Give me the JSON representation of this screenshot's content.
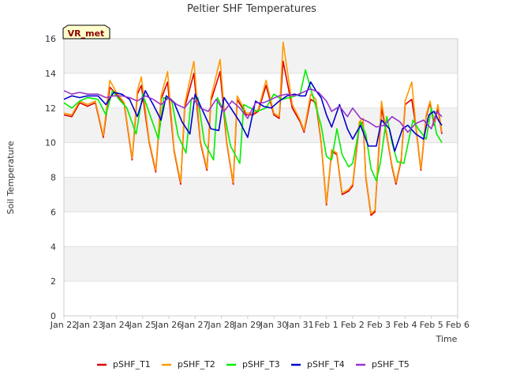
{
  "chart_data": {
    "type": "line",
    "title": "Peltier SHF Temperatures",
    "xlabel": "Time",
    "ylabel": "Soil Temperature",
    "badge": "VR_met",
    "ylim": [
      0,
      16
    ],
    "yticks": [
      0,
      2,
      4,
      6,
      8,
      10,
      12,
      14,
      16
    ],
    "xlim": [
      0,
      15
    ],
    "xtick_labels": [
      "Jan 22",
      "Jan 23",
      "Jan 24",
      "Jan 25",
      "Jan 26",
      "Jan 27",
      "Jan 28",
      "Jan 29",
      "Jan 30",
      "Jan 31",
      "Feb 1",
      "Feb 2",
      "Feb 3",
      "Feb 4",
      "Feb 5",
      "Feb 6"
    ],
    "grid": "horizontal bands",
    "legend_position": "bottom",
    "x_unit": "days since Jan 22",
    "series": [
      {
        "name": "pSHF_T1",
        "color": "#dd0000",
        "x": [
          0,
          0.3,
          0.6,
          0.9,
          1.2,
          1.5,
          1.75,
          2.0,
          2.3,
          2.6,
          2.8,
          2.95,
          3.25,
          3.5,
          3.7,
          3.95,
          4.2,
          4.45,
          4.6,
          4.95,
          5.2,
          5.45,
          5.6,
          5.95,
          6.2,
          6.45,
          6.6,
          6.95,
          7.2,
          7.4,
          7.7,
          8.0,
          8.2,
          8.35,
          8.7,
          9.0,
          9.15,
          9.4,
          9.6,
          9.8,
          10.0,
          10.2,
          10.4,
          10.6,
          10.85,
          11.0,
          11.25,
          11.4,
          11.5,
          11.7,
          11.85,
          12.1,
          12.3,
          12.5,
          12.65,
          12.85,
          13.0,
          13.25,
          13.4,
          13.6,
          13.8,
          13.95,
          14.1,
          14.25,
          14.4
        ],
        "y": [
          11.6,
          11.5,
          12.3,
          12.1,
          12.3,
          10.3,
          13.2,
          12.8,
          12.2,
          9.0,
          12.8,
          13.3,
          10.0,
          8.3,
          12.5,
          13.5,
          9.5,
          7.6,
          12.0,
          14.0,
          10.0,
          8.4,
          12.4,
          14.1,
          10.0,
          7.6,
          12.5,
          11.6,
          11.6,
          11.8,
          13.3,
          11.6,
          11.4,
          14.7,
          12.0,
          11.2,
          10.6,
          12.5,
          12.3,
          10.0,
          6.4,
          9.5,
          9.3,
          7.0,
          7.2,
          7.5,
          11.0,
          11.2,
          8.0,
          5.8,
          6.0,
          12.0,
          10.4,
          8.6,
          7.6,
          9.0,
          12.2,
          12.5,
          11.0,
          8.4,
          11.5,
          12.3,
          11.0,
          12.0,
          10.5
        ]
      },
      {
        "name": "pSHF_T2",
        "color": "#ff9900",
        "x": [
          0,
          0.3,
          0.6,
          0.9,
          1.2,
          1.5,
          1.75,
          2.0,
          2.3,
          2.6,
          2.8,
          2.95,
          3.25,
          3.5,
          3.7,
          3.95,
          4.2,
          4.45,
          4.6,
          4.95,
          5.2,
          5.45,
          5.6,
          5.95,
          6.2,
          6.45,
          6.6,
          6.95,
          7.2,
          7.4,
          7.7,
          8.0,
          8.2,
          8.35,
          8.7,
          9.0,
          9.15,
          9.4,
          9.6,
          9.8,
          10.0,
          10.2,
          10.4,
          10.6,
          10.85,
          11.0,
          11.25,
          11.4,
          11.5,
          11.7,
          11.85,
          12.1,
          12.3,
          12.5,
          12.65,
          12.85,
          13.0,
          13.25,
          13.4,
          13.6,
          13.8,
          13.95,
          14.1,
          14.25,
          14.4
        ],
        "y": [
          11.7,
          11.6,
          12.4,
          12.2,
          12.4,
          10.4,
          13.6,
          12.9,
          12.3,
          9.1,
          13.0,
          13.8,
          10.1,
          8.4,
          12.7,
          14.1,
          9.6,
          7.7,
          12.2,
          14.7,
          10.1,
          8.5,
          12.6,
          14.8,
          10.1,
          7.7,
          12.7,
          11.7,
          11.7,
          11.9,
          13.6,
          11.7,
          11.5,
          15.8,
          12.2,
          11.3,
          10.7,
          12.8,
          12.5,
          10.1,
          6.5,
          9.6,
          9.4,
          7.1,
          7.3,
          7.6,
          11.2,
          11.4,
          8.1,
          5.9,
          6.1,
          12.4,
          10.5,
          8.7,
          7.7,
          9.1,
          12.4,
          13.5,
          11.1,
          8.5,
          11.6,
          12.4,
          11.1,
          12.2,
          10.6
        ]
      },
      {
        "name": "pSHF_T3",
        "color": "#00ee00",
        "x": [
          0,
          0.3,
          0.6,
          0.9,
          1.3,
          1.6,
          1.85,
          2.1,
          2.4,
          2.75,
          3.0,
          3.3,
          3.6,
          3.8,
          4.1,
          4.35,
          4.65,
          4.85,
          5.1,
          5.35,
          5.7,
          5.85,
          6.1,
          6.35,
          6.7,
          6.85,
          7.1,
          7.35,
          7.7,
          8.0,
          8.3,
          8.6,
          9.0,
          9.2,
          9.5,
          9.8,
          10.0,
          10.2,
          10.4,
          10.6,
          10.85,
          11.0,
          11.3,
          11.5,
          11.7,
          11.9,
          12.05,
          12.3,
          12.5,
          12.7,
          12.95,
          13.3,
          13.5,
          13.8,
          14.0,
          14.2,
          14.4
        ],
        "y": [
          12.3,
          12.0,
          12.4,
          12.6,
          12.5,
          11.6,
          13.0,
          12.5,
          12.0,
          10.5,
          12.8,
          11.5,
          10.2,
          12.6,
          12.5,
          10.4,
          9.4,
          12.5,
          12.6,
          10.0,
          9.0,
          12.6,
          11.8,
          9.8,
          8.8,
          12.2,
          12.0,
          11.8,
          12.0,
          12.8,
          12.5,
          12.6,
          12.8,
          14.2,
          12.6,
          11.0,
          9.2,
          9.0,
          10.8,
          9.3,
          8.6,
          8.8,
          11.2,
          10.5,
          8.5,
          7.8,
          8.8,
          11.5,
          10.0,
          8.9,
          8.8,
          11.3,
          10.8,
          10.2,
          12.0,
          10.5,
          10.0
        ]
      },
      {
        "name": "pSHF_T4",
        "color": "#0000cc",
        "x": [
          0,
          0.3,
          0.6,
          0.9,
          1.3,
          1.6,
          1.9,
          2.2,
          2.5,
          2.8,
          3.1,
          3.4,
          3.7,
          3.9,
          4.2,
          4.5,
          4.8,
          5.0,
          5.3,
          5.6,
          5.9,
          6.1,
          6.4,
          6.7,
          7.0,
          7.3,
          7.6,
          7.9,
          8.2,
          8.5,
          8.8,
          9.0,
          9.2,
          9.4,
          9.6,
          9.8,
          10.0,
          10.2,
          10.5,
          10.8,
          11.0,
          11.3,
          11.6,
          11.9,
          12.1,
          12.4,
          12.6,
          12.9,
          13.1,
          13.4,
          13.7,
          13.9,
          14.1,
          14.3,
          14.4
        ],
        "y": [
          12.5,
          12.7,
          12.6,
          12.7,
          12.7,
          12.2,
          12.9,
          12.8,
          12.5,
          11.5,
          13.0,
          12.2,
          11.3,
          12.7,
          12.3,
          11.2,
          10.5,
          12.8,
          11.8,
          10.8,
          10.7,
          12.6,
          11.9,
          11.2,
          10.3,
          12.4,
          12.1,
          12.0,
          12.4,
          12.7,
          12.8,
          12.7,
          12.7,
          13.5,
          13.0,
          12.6,
          11.6,
          10.9,
          12.2,
          10.8,
          10.2,
          11.0,
          9.8,
          9.8,
          11.3,
          10.8,
          9.5,
          10.8,
          11.0,
          10.5,
          10.2,
          11.6,
          11.8,
          11.2,
          11.0
        ]
      },
      {
        "name": "pSHF_T5",
        "color": "#9933cc",
        "x": [
          0,
          0.3,
          0.6,
          0.9,
          1.3,
          1.6,
          1.9,
          2.2,
          2.5,
          2.8,
          3.1,
          3.4,
          3.7,
          4.0,
          4.3,
          4.6,
          4.9,
          5.2,
          5.5,
          5.8,
          6.1,
          6.4,
          6.7,
          7.0,
          7.3,
          7.6,
          7.9,
          8.2,
          8.5,
          8.8,
          9.1,
          9.4,
          9.7,
          10.0,
          10.2,
          10.5,
          10.8,
          11.0,
          11.3,
          11.6,
          11.9,
          12.2,
          12.5,
          12.8,
          13.1,
          13.4,
          13.7,
          14.0,
          14.2,
          14.4
        ],
        "y": [
          13.0,
          12.8,
          12.9,
          12.8,
          12.8,
          12.6,
          12.7,
          12.7,
          12.6,
          12.4,
          12.7,
          12.5,
          12.2,
          12.6,
          12.2,
          12.0,
          12.6,
          12.0,
          11.8,
          12.5,
          11.8,
          12.4,
          12.0,
          11.4,
          12.3,
          12.3,
          12.5,
          12.7,
          12.8,
          12.7,
          12.9,
          13.1,
          12.9,
          12.4,
          11.8,
          12.1,
          11.5,
          12.0,
          11.4,
          11.2,
          10.9,
          11.0,
          11.5,
          11.2,
          10.6,
          11.1,
          11.3,
          10.8,
          11.8,
          11.5
        ]
      }
    ]
  }
}
